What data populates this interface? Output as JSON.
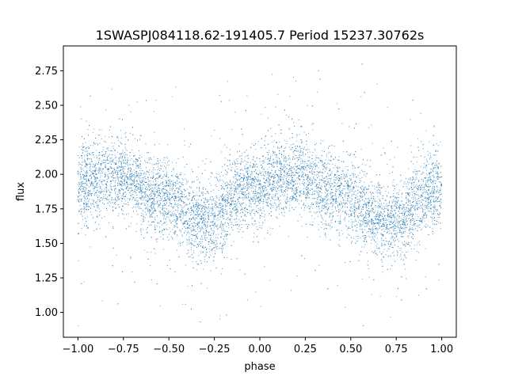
{
  "chart_data": {
    "type": "scatter",
    "title": "1SWASPJ084118.62-191405.7 Period 15237.30762s",
    "xlabel": "phase",
    "ylabel": "flux",
    "xlim": [
      -1.08,
      1.08
    ],
    "ylim": [
      0.82,
      2.93
    ],
    "xticks": [
      -1.0,
      -0.75,
      -0.5,
      -0.25,
      0.0,
      0.25,
      0.5,
      0.75,
      1.0
    ],
    "xtick_labels": [
      "−1.00",
      "−0.75",
      "−0.50",
      "−0.25",
      "0.00",
      "0.25",
      "0.50",
      "0.75",
      "1.00"
    ],
    "yticks": [
      1.0,
      1.25,
      1.5,
      1.75,
      2.0,
      2.25,
      2.5,
      2.75
    ],
    "ytick_labels": [
      "1.00",
      "1.25",
      "1.50",
      "1.75",
      "2.00",
      "2.25",
      "2.50",
      "2.75"
    ],
    "grid": false,
    "point_color": "#1f77b4",
    "series": [
      {
        "x_range": [
          -1.0,
          1.0
        ],
        "profile_phase": [
          -1.0,
          -0.8,
          -0.55,
          -0.3,
          -0.05,
          0.2,
          0.45,
          0.7,
          1.0
        ],
        "profile_flux": [
          1.92,
          2.0,
          1.85,
          1.65,
          1.9,
          2.0,
          1.85,
          1.65,
          1.9
        ],
        "scatter_sigma": 0.14,
        "n_points": 9000
      }
    ]
  }
}
